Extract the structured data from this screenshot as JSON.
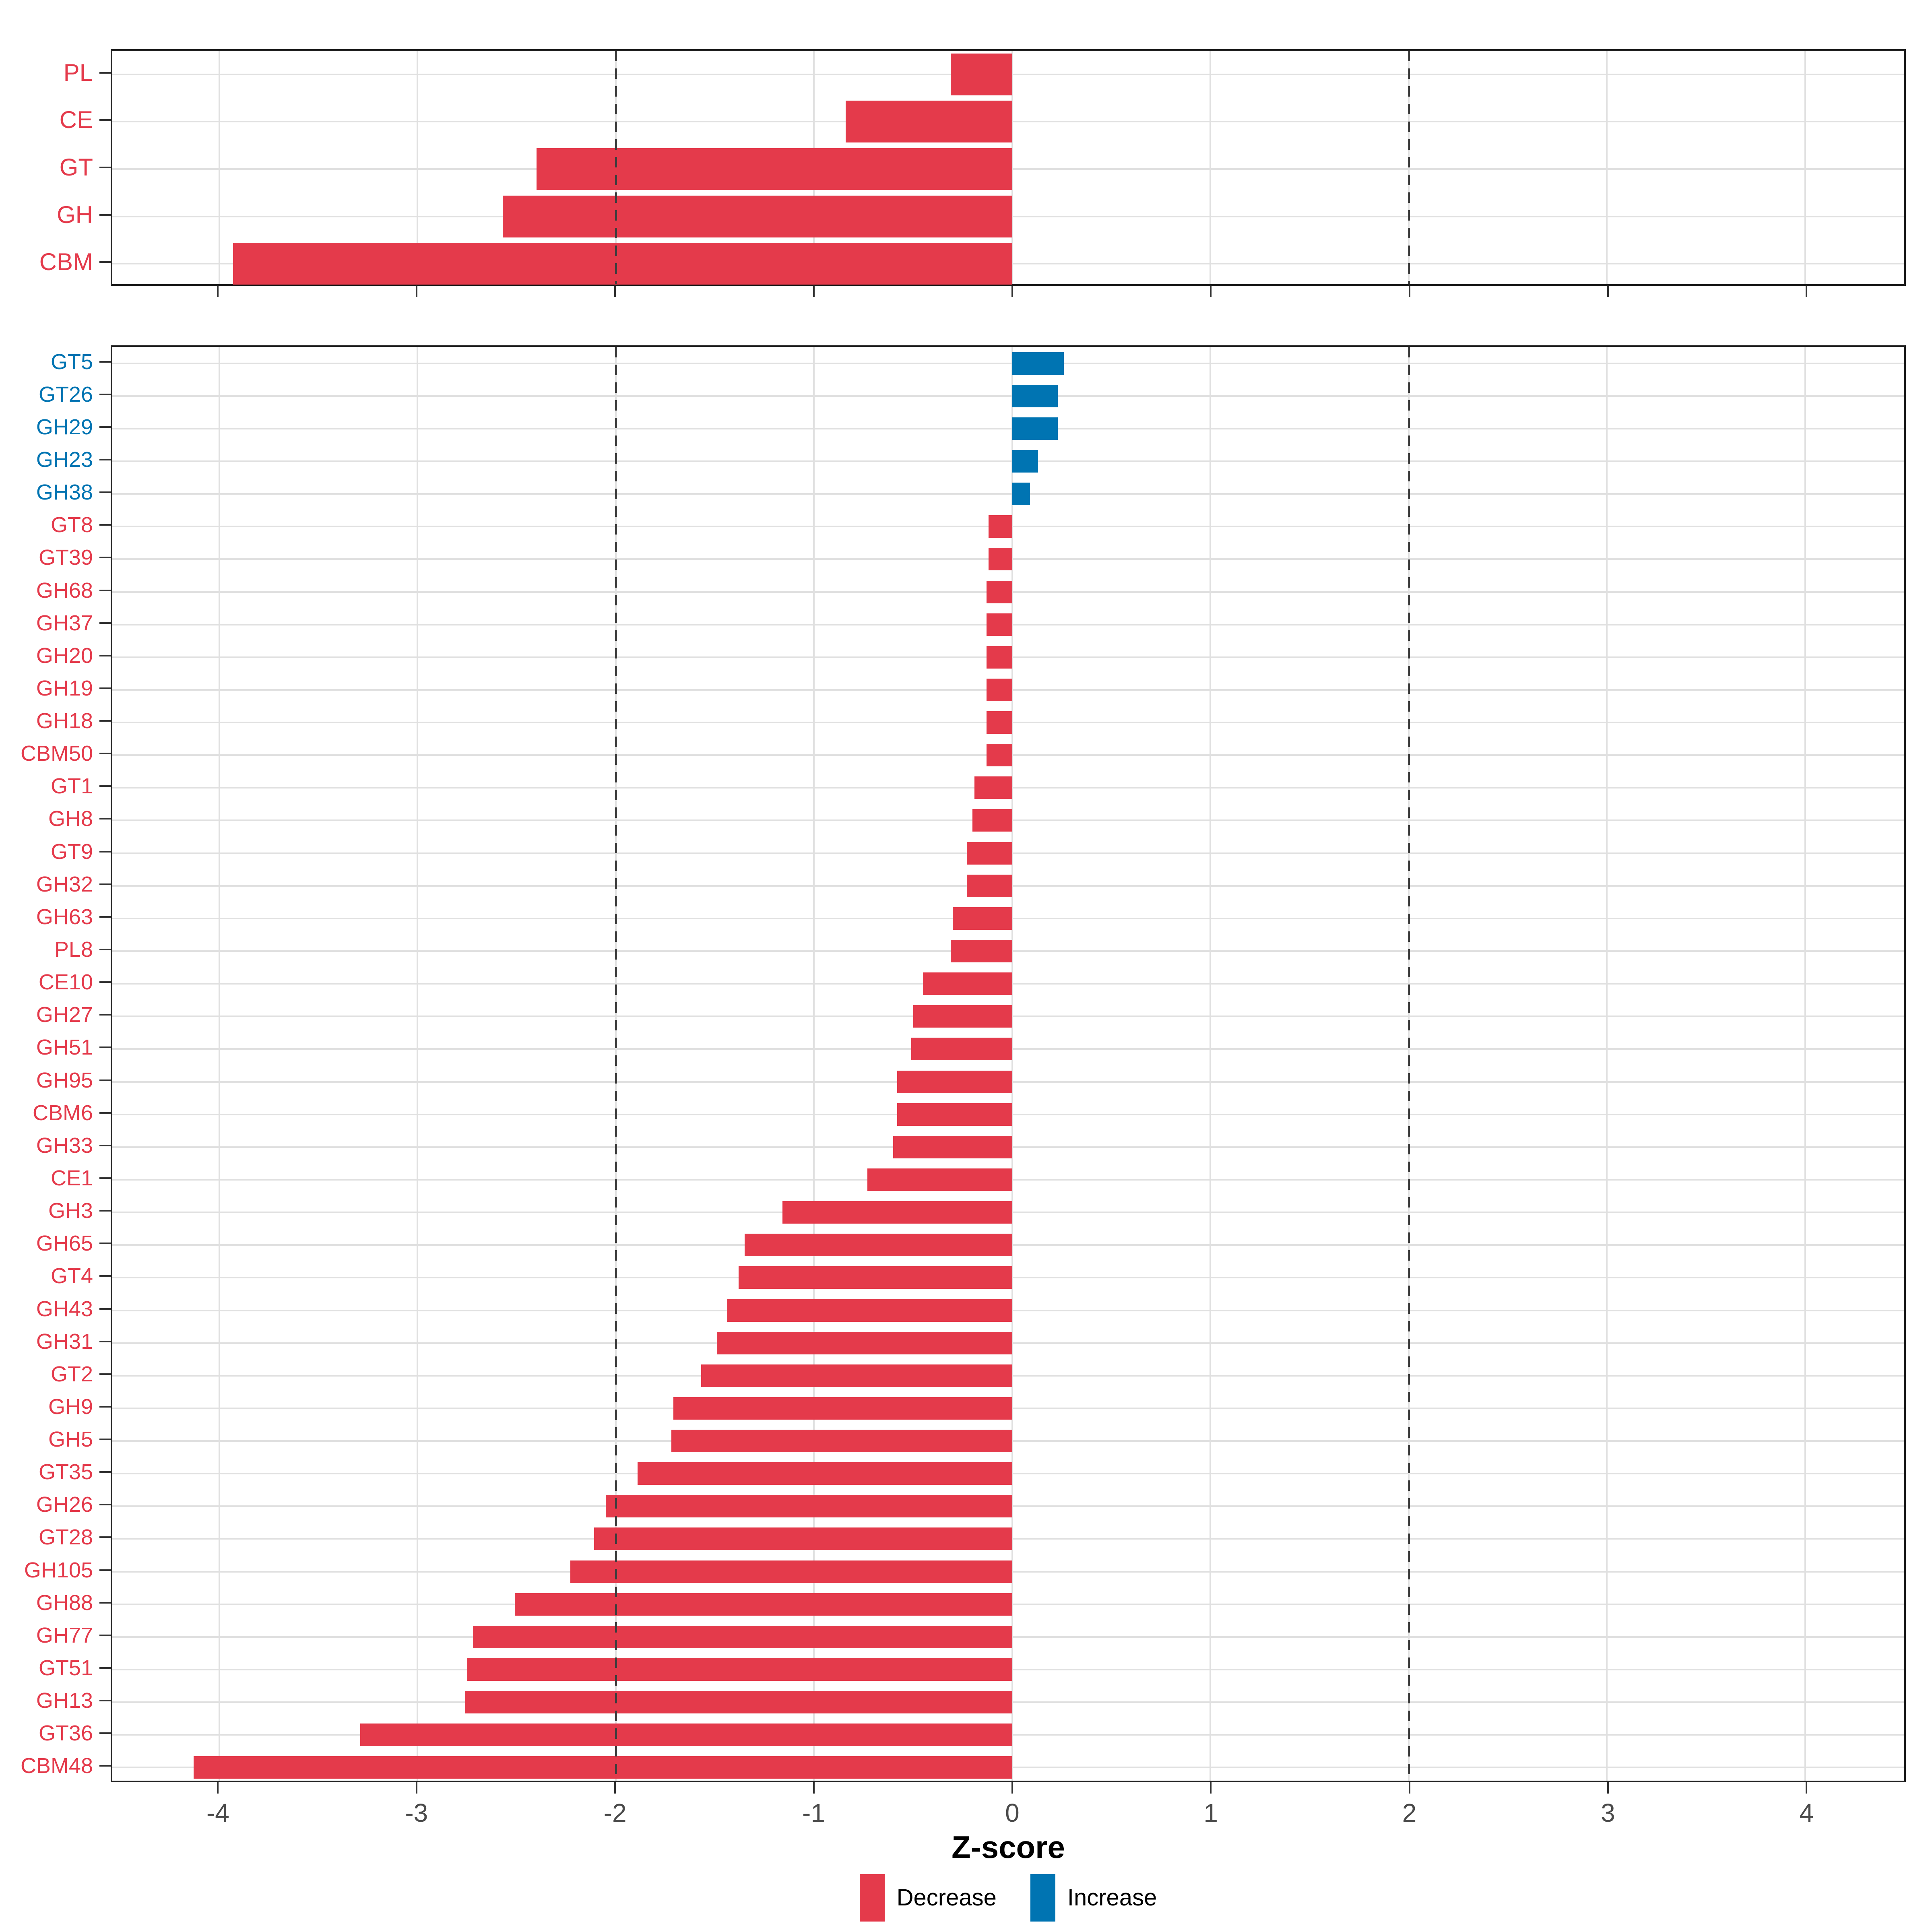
{
  "figure": {
    "background": "#ffffff"
  },
  "axis": {
    "title": "Z-score",
    "tick_values": [
      -4,
      -3,
      -2,
      -1,
      0,
      1,
      2,
      3,
      4
    ],
    "xlim": [
      -4.54,
      4.5
    ],
    "reference_lines": [
      -2,
      2
    ],
    "grid": true
  },
  "legend": {
    "position": "bottom-center",
    "items": [
      {
        "label": "Decrease",
        "key": "decrease"
      },
      {
        "label": "Increase",
        "key": "increase"
      }
    ]
  },
  "colors": {
    "decrease": "#e43a4b",
    "increase": "#0074b2",
    "grid": "#e0e0e0",
    "reference_line": "#3d3d3d",
    "panel_border": "#1f1f1f",
    "tick": "#333333",
    "tick_label": "#4a4a4a",
    "axis_title": "#000000"
  },
  "chart_data": [
    {
      "type": "bar",
      "orientation": "horizontal",
      "panel": "cazyme-class",
      "title": "",
      "xlabel": "Z-score",
      "ylabel": "",
      "xlim": [
        -4.54,
        4.5
      ],
      "legend_note": "red = Decrease (negative Z-score), blue = Increase (positive Z-score)",
      "categories": [
        "PL",
        "CE",
        "GT",
        "GH",
        "CBM"
      ],
      "values": [
        -0.31,
        -0.84,
        -2.4,
        -2.57,
        -3.93
      ]
    },
    {
      "type": "bar",
      "orientation": "horizontal",
      "panel": "cazyme-family",
      "title": "",
      "xlabel": "Z-score",
      "ylabel": "",
      "xlim": [
        -4.54,
        4.5
      ],
      "legend_note": "red = Decrease (negative Z-score), blue = Increase (positive Z-score)",
      "categories": [
        "GT5",
        "GT26",
        "GH29",
        "GH23",
        "GH38",
        "GT8",
        "GT39",
        "GH68",
        "GH37",
        "GH20",
        "GH19",
        "GH18",
        "CBM50",
        "GT1",
        "GH8",
        "GT9",
        "GH32",
        "GH63",
        "PL8",
        "CE10",
        "GH27",
        "GH51",
        "GH95",
        "CBM6",
        "GH33",
        "CE1",
        "GH3",
        "GH65",
        "GT4",
        "GH43",
        "GH31",
        "GT2",
        "GH9",
        "GH5",
        "GT35",
        "GH26",
        "GT28",
        "GH105",
        "GH88",
        "GH77",
        "GT51",
        "GH13",
        "GT36",
        "CBM48"
      ],
      "values": [
        0.26,
        0.23,
        0.23,
        0.13,
        0.09,
        -0.12,
        -0.12,
        -0.13,
        -0.13,
        -0.13,
        -0.13,
        -0.13,
        -0.13,
        -0.19,
        -0.2,
        -0.23,
        -0.23,
        -0.3,
        -0.31,
        -0.45,
        -0.5,
        -0.51,
        -0.58,
        -0.58,
        -0.6,
        -0.73,
        -1.16,
        -1.35,
        -1.38,
        -1.44,
        -1.49,
        -1.57,
        -1.71,
        -1.72,
        -1.89,
        -2.05,
        -2.11,
        -2.23,
        -2.51,
        -2.72,
        -2.75,
        -2.76,
        -3.29,
        -4.13
      ]
    }
  ]
}
